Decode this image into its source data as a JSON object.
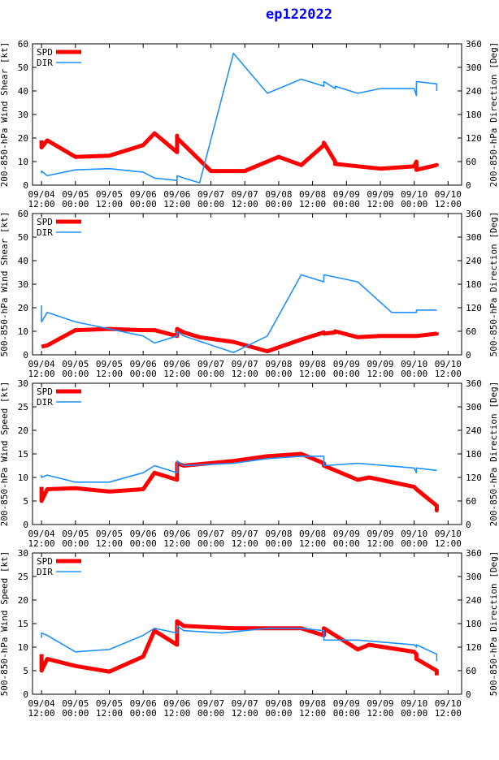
{
  "title": "ep122022",
  "colors": {
    "spd": "#ff0000",
    "dir": "#1e90ff",
    "axis": "#000000",
    "title": "#0000ff"
  },
  "chart_data": [
    {
      "type": "line",
      "ylabel_left": "200-850-hPa Wind Shear [kt]",
      "ylabel_right": "200-850-hPa Direction [Deg]",
      "ylim_left": [
        0,
        60
      ],
      "yticks_left": [
        "0",
        "10",
        "20",
        "30",
        "40",
        "50",
        "60"
      ],
      "ylim_right": [
        0,
        360
      ],
      "yticks_right": [
        "0",
        "60",
        "120",
        "180",
        "240",
        "300",
        "360"
      ],
      "x_ticks": [
        [
          "09/04",
          "12:00"
        ],
        [
          "09/05",
          "00:00"
        ],
        [
          "09/05",
          "12:00"
        ],
        [
          "09/06",
          "00:00"
        ],
        [
          "09/06",
          "12:00"
        ],
        [
          "09/07",
          "00:00"
        ],
        [
          "09/07",
          "12:00"
        ],
        [
          "09/08",
          "00:00"
        ],
        [
          "09/08",
          "12:00"
        ],
        [
          "09/09",
          "00:00"
        ],
        [
          "09/09",
          "12:00"
        ],
        [
          "09/10",
          "00:00"
        ],
        [
          "09/10",
          "12:00"
        ]
      ],
      "legend": [
        "SPD",
        "DIR"
      ],
      "series": [
        {
          "name": "SPD",
          "x": [
            0,
            0,
            0.25,
            1.5,
            3,
            4.5,
            5,
            6,
            6,
            6,
            7.5,
            9,
            10.5,
            11.5,
            12.5,
            12.5,
            13,
            13,
            14,
            15,
            16.5,
            16.6,
            16.6,
            17.5,
            17.5
          ],
          "values": [
            19,
            16,
            19,
            12,
            12.5,
            17,
            22,
            14,
            21,
            20,
            6,
            6,
            12,
            8.5,
            17,
            18,
            10,
            9,
            8,
            7,
            8,
            10,
            6.5,
            8.5,
            8
          ]
        },
        {
          "name": "DIR",
          "x": [
            0,
            0,
            0.25,
            1.5,
            3,
            4.5,
            5,
            6,
            6,
            6.3,
            7,
            8.5,
            10,
            11.5,
            12.5,
            12.5,
            13,
            13,
            14,
            15,
            16.5,
            16.6,
            16.6,
            17.5,
            17.5
          ],
          "values": [
            30,
            36,
            24,
            39,
            42,
            33,
            18,
            12,
            24,
            18,
            6,
            336,
            234,
            270,
            252,
            264,
            246,
            252,
            234,
            246,
            246,
            228,
            264,
            258,
            240
          ]
        }
      ]
    },
    {
      "type": "line",
      "ylabel_left": "500-850-hPa Wind Shear [kt]",
      "ylabel_right": "500-850-hPa Direction [Deg]",
      "ylim_left": [
        0,
        60
      ],
      "yticks_left": [
        "0",
        "10",
        "20",
        "30",
        "40",
        "50",
        "60"
      ],
      "ylim_right": [
        0,
        360
      ],
      "yticks_right": [
        "0",
        "60",
        "120",
        "180",
        "240",
        "300",
        "360"
      ],
      "x_ticks": [
        [
          "09/04",
          "12:00"
        ],
        [
          "09/05",
          "00:00"
        ],
        [
          "09/05",
          "12:00"
        ],
        [
          "09/06",
          "00:00"
        ],
        [
          "09/06",
          "12:00"
        ],
        [
          "09/07",
          "00:00"
        ],
        [
          "09/07",
          "12:00"
        ],
        [
          "09/08",
          "00:00"
        ],
        [
          "09/08",
          "12:00"
        ],
        [
          "09/09",
          "00:00"
        ],
        [
          "09/09",
          "12:00"
        ],
        [
          "09/10",
          "00:00"
        ],
        [
          "09/10",
          "12:00"
        ]
      ],
      "legend": [
        "SPD",
        "DIR"
      ],
      "series": [
        {
          "name": "SPD",
          "x": [
            0,
            0.25,
            1.5,
            3,
            4.5,
            5,
            6,
            6,
            6.3,
            7,
            8.5,
            10,
            11.5,
            12.5,
            12.5,
            13,
            13,
            14,
            15,
            16.5,
            16.6,
            16.6,
            17.5,
            17.5
          ],
          "values": [
            3.5,
            4,
            10.5,
            11,
            10.5,
            10.5,
            8,
            11,
            9.5,
            7.5,
            5.5,
            1.5,
            6.5,
            9.5,
            9,
            9.5,
            10,
            7.5,
            8,
            8,
            8,
            8,
            9,
            9.5
          ]
        },
        {
          "name": "DIR",
          "x": [
            0,
            0,
            0.25,
            1.5,
            3,
            4.5,
            5,
            6,
            6,
            6.3,
            8.5,
            10,
            11.5,
            12.5,
            12.5,
            14,
            15.5,
            16.5,
            16.6,
            16.6,
            17.5
          ],
          "values": [
            126,
            84,
            108,
            84,
            66,
            48,
            30,
            48,
            60,
            48,
            6,
            48,
            204,
            186,
            204,
            186,
            108,
            108,
            108,
            114,
            114
          ]
        }
      ]
    },
    {
      "type": "line",
      "ylabel_left": "200-850-hPa Wind Speed [kt]",
      "ylabel_right": "200-850-hPa Direction [Deg]",
      "ylim_left": [
        0,
        30
      ],
      "yticks_left": [
        "0",
        "5",
        "10",
        "15",
        "20",
        "25",
        "30"
      ],
      "ylim_right": [
        0,
        360
      ],
      "yticks_right": [
        "0",
        "60",
        "120",
        "180",
        "240",
        "300",
        "360"
      ],
      "x_ticks": [
        [
          "09/04",
          "12:00"
        ],
        [
          "09/05",
          "00:00"
        ],
        [
          "09/05",
          "12:00"
        ],
        [
          "09/06",
          "00:00"
        ],
        [
          "09/06",
          "12:00"
        ],
        [
          "09/07",
          "00:00"
        ],
        [
          "09/07",
          "12:00"
        ],
        [
          "09/08",
          "00:00"
        ],
        [
          "09/08",
          "12:00"
        ],
        [
          "09/09",
          "00:00"
        ],
        [
          "09/09",
          "12:00"
        ],
        [
          "09/10",
          "00:00"
        ],
        [
          "09/10",
          "12:00"
        ]
      ],
      "legend": [
        "SPD",
        "DIR"
      ],
      "series": [
        {
          "name": "SPD",
          "x": [
            0,
            0,
            0.25,
            1.5,
            3,
            4.5,
            5,
            6,
            6,
            6.3,
            8.5,
            10,
            11.5,
            12.5,
            12.5,
            14,
            14.5,
            16.5,
            16.6,
            16.6,
            17.5,
            17.5,
            17.5
          ],
          "values": [
            8,
            5,
            7.5,
            7.7,
            7,
            7.5,
            11,
            9.5,
            13,
            12.5,
            13.5,
            14.5,
            15,
            13,
            12.5,
            9.5,
            10,
            8,
            7.5,
            7.5,
            4,
            3,
            4
          ]
        },
        {
          "name": "DIR",
          "x": [
            0,
            0,
            0.25,
            1.5,
            3,
            4.5,
            5,
            6,
            6,
            6.3,
            8.5,
            10,
            11.5,
            12.5,
            12.5,
            14,
            16.5,
            16.6,
            16.6,
            17.5
          ],
          "values": [
            126,
            120,
            126,
            108,
            108,
            132,
            150,
            132,
            162,
            150,
            156,
            168,
            174,
            174,
            150,
            156,
            144,
            132,
            144,
            138
          ]
        }
      ]
    },
    {
      "type": "line",
      "ylabel_left": "500-850-hPa Wind Speed [kt]",
      "ylabel_right": "500-850-hPa Direction [Deg]",
      "ylim_left": [
        0,
        30
      ],
      "yticks_left": [
        "0",
        "5",
        "10",
        "15",
        "20",
        "25",
        "30"
      ],
      "ylim_right": [
        0,
        360
      ],
      "yticks_right": [
        "0",
        "60",
        "120",
        "180",
        "240",
        "300",
        "360"
      ],
      "x_ticks": [
        [
          "09/04",
          "12:00"
        ],
        [
          "09/05",
          "00:00"
        ],
        [
          "09/05",
          "12:00"
        ],
        [
          "09/06",
          "00:00"
        ],
        [
          "09/06",
          "12:00"
        ],
        [
          "09/07",
          "00:00"
        ],
        [
          "09/07",
          "12:00"
        ],
        [
          "09/08",
          "00:00"
        ],
        [
          "09/08",
          "12:00"
        ],
        [
          "09/09",
          "00:00"
        ],
        [
          "09/09",
          "12:00"
        ],
        [
          "09/10",
          "00:00"
        ],
        [
          "09/10",
          "12:00"
        ]
      ],
      "legend": [
        "SPD",
        "DIR"
      ],
      "series": [
        {
          "name": "SPD",
          "x": [
            0,
            0,
            0.25,
            1.5,
            3,
            4.5,
            5,
            6,
            6,
            6.3,
            8.5,
            10,
            11.5,
            12.5,
            12.5,
            14,
            14.5,
            16.5,
            16.6,
            16.6,
            17.5,
            17.5
          ],
          "values": [
            8.5,
            5,
            7.5,
            6,
            4.8,
            8,
            13.5,
            10.5,
            15.5,
            14.5,
            14,
            14,
            14,
            12.5,
            14,
            9.5,
            10.5,
            9,
            8.5,
            7.5,
            5,
            4
          ]
        },
        {
          "name": "DIR",
          "x": [
            0,
            0,
            0.25,
            1.5,
            3,
            4.5,
            5,
            6,
            6,
            6.3,
            8,
            10,
            11.5,
            12.5,
            12.5,
            14,
            16.5,
            16.6,
            16.6,
            17.5,
            17.5
          ],
          "values": [
            144,
            156,
            150,
            108,
            114,
            150,
            168,
            156,
            174,
            162,
            156,
            168,
            168,
            162,
            138,
            138,
            126,
            120,
            126,
            102,
            84
          ]
        }
      ]
    }
  ]
}
